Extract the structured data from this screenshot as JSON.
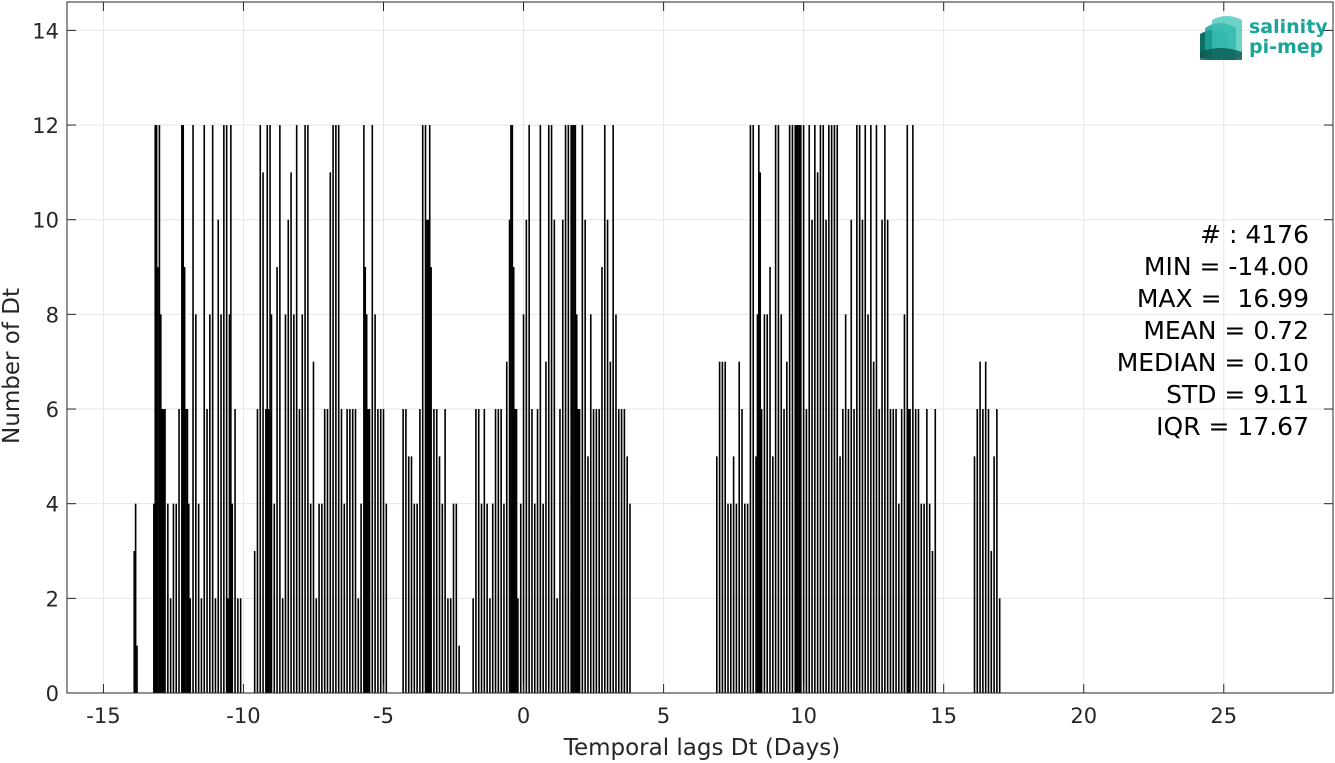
{
  "chart_data": {
    "type": "bar",
    "xlabel": "Temporal lags Dt (Days)",
    "ylabel": "Number of Dt",
    "xlim": [
      -16.3,
      28.9
    ],
    "ylim": [
      0,
      14.6
    ],
    "xticks": [
      -15,
      -10,
      -5,
      0,
      5,
      10,
      15,
      20,
      25
    ],
    "yticks": [
      0,
      2,
      4,
      6,
      8,
      10,
      12,
      14
    ],
    "grid": true,
    "bar_color": "#000000",
    "bar_width_days": 0.04,
    "x": [
      -13.9,
      -13.85,
      -13.8,
      -13.2,
      -13.15,
      -13.1,
      -13.05,
      -13.0,
      -12.95,
      -12.9,
      -12.85,
      -12.8,
      -12.7,
      -12.6,
      -12.5,
      -12.4,
      -12.3,
      -12.2,
      -12.15,
      -12.1,
      -12.05,
      -12.0,
      -11.95,
      -11.9,
      -11.8,
      -11.7,
      -11.6,
      -11.5,
      -11.4,
      -11.3,
      -11.2,
      -11.1,
      -11.0,
      -10.9,
      -10.8,
      -10.7,
      -10.6,
      -10.55,
      -10.5,
      -10.45,
      -10.4,
      -10.3,
      -10.2,
      -10.1,
      -9.6,
      -9.5,
      -9.4,
      -9.3,
      -9.2,
      -9.15,
      -9.1,
      -9.05,
      -9.0,
      -8.9,
      -8.8,
      -8.7,
      -8.6,
      -8.5,
      -8.4,
      -8.3,
      -8.2,
      -8.1,
      -8.0,
      -7.9,
      -7.8,
      -7.7,
      -7.6,
      -7.5,
      -7.4,
      -7.3,
      -7.2,
      -7.1,
      -7.0,
      -6.9,
      -6.8,
      -6.7,
      -6.6,
      -6.5,
      -6.4,
      -6.3,
      -6.2,
      -6.1,
      -6.0,
      -5.9,
      -5.8,
      -5.7,
      -5.65,
      -5.6,
      -5.55,
      -5.5,
      -5.4,
      -5.3,
      -5.2,
      -5.1,
      -5.0,
      -4.9,
      -4.3,
      -4.2,
      -4.1,
      -4.0,
      -3.9,
      -3.8,
      -3.7,
      -3.6,
      -3.5,
      -3.45,
      -3.4,
      -3.35,
      -3.3,
      -3.2,
      -3.1,
      -3.0,
      -2.9,
      -2.8,
      -2.7,
      -2.6,
      -2.5,
      -2.4,
      -2.3,
      -1.8,
      -1.7,
      -1.6,
      -1.5,
      -1.4,
      -1.3,
      -1.2,
      -1.1,
      -1.0,
      -0.9,
      -0.8,
      -0.7,
      -0.6,
      -0.5,
      -0.45,
      -0.4,
      -0.35,
      -0.3,
      -0.25,
      -0.2,
      -0.1,
      0.0,
      0.1,
      0.2,
      0.3,
      0.4,
      0.5,
      0.6,
      0.7,
      0.8,
      0.9,
      1.0,
      1.1,
      1.2,
      1.3,
      1.4,
      1.5,
      1.6,
      1.7,
      1.75,
      1.8,
      1.85,
      1.9,
      1.95,
      2.0,
      2.1,
      2.2,
      2.3,
      2.4,
      2.5,
      2.6,
      2.7,
      2.8,
      2.9,
      3.0,
      3.1,
      3.2,
      3.3,
      3.4,
      3.5,
      3.6,
      3.7,
      3.8,
      6.9,
      7.0,
      7.1,
      7.2,
      7.3,
      7.4,
      7.5,
      7.6,
      7.7,
      7.8,
      7.9,
      8.0,
      8.1,
      8.2,
      8.3,
      8.35,
      8.4,
      8.45,
      8.5,
      8.6,
      8.7,
      8.8,
      8.9,
      9.0,
      9.1,
      9.2,
      9.3,
      9.4,
      9.5,
      9.6,
      9.7,
      9.75,
      9.8,
      9.85,
      9.9,
      10.0,
      10.1,
      10.2,
      10.3,
      10.4,
      10.5,
      10.6,
      10.7,
      10.8,
      10.9,
      11.0,
      11.1,
      11.2,
      11.3,
      11.4,
      11.5,
      11.6,
      11.7,
      11.8,
      11.9,
      12.0,
      12.1,
      12.2,
      12.3,
      12.4,
      12.5,
      12.6,
      12.7,
      12.8,
      12.9,
      13.0,
      13.1,
      13.2,
      13.3,
      13.4,
      13.5,
      13.6,
      13.7,
      13.75,
      13.8,
      13.9,
      14.0,
      14.1,
      14.2,
      14.3,
      14.4,
      14.5,
      14.6,
      14.7,
      16.1,
      16.2,
      16.3,
      16.4,
      16.5,
      16.6,
      16.7,
      16.8,
      16.9,
      17.0
    ],
    "y": [
      3,
      4,
      1,
      4,
      12,
      12,
      9,
      12,
      8,
      6,
      6,
      6,
      4,
      2,
      4,
      4,
      6,
      12,
      12,
      9,
      6,
      6,
      4,
      2,
      12,
      8,
      4,
      2,
      12,
      6,
      8,
      12,
      2,
      10,
      8,
      12,
      12,
      2,
      8,
      12,
      4,
      6,
      2,
      2,
      3,
      6,
      12,
      11,
      6,
      12,
      6,
      12,
      8,
      4,
      9,
      12,
      2,
      8,
      10,
      11,
      8,
      12,
      6,
      8,
      12,
      12,
      4,
      7,
      2,
      4,
      4,
      6,
      6,
      11,
      12,
      12,
      12,
      6,
      4,
      6,
      6,
      6,
      6,
      2,
      4,
      12,
      9,
      8,
      6,
      6,
      12,
      8,
      6,
      6,
      6,
      4,
      6,
      6,
      5,
      5,
      4,
      4,
      6,
      12,
      12,
      10,
      10,
      12,
      9,
      6,
      6,
      5,
      4,
      6,
      2,
      2,
      4,
      4,
      1,
      2,
      6,
      6,
      4,
      6,
      4,
      2,
      4,
      6,
      6,
      6,
      4,
      7,
      10,
      12,
      12,
      9,
      6,
      6,
      2,
      4,
      8,
      10,
      12,
      6,
      4,
      6,
      12,
      4,
      7,
      12,
      12,
      10,
      2,
      6,
      10,
      12,
      12,
      12,
      12,
      12,
      12,
      8,
      6,
      6,
      12,
      10,
      5,
      8,
      6,
      6,
      6,
      9,
      12,
      10,
      7,
      12,
      8,
      6,
      6,
      6,
      5,
      4,
      5,
      7,
      7,
      7,
      4,
      4,
      5,
      4,
      7,
      6,
      4,
      4,
      12,
      12,
      5,
      8,
      12,
      11,
      6,
      8,
      8,
      9,
      5,
      12,
      12,
      8,
      6,
      7,
      12,
      12,
      12,
      12,
      12,
      12,
      12,
      12,
      6,
      12,
      10,
      12,
      11,
      12,
      12,
      10,
      12,
      12,
      12,
      12,
      5,
      6,
      8,
      6,
      10,
      6,
      12,
      12,
      10,
      12,
      8,
      12,
      7,
      12,
      6,
      10,
      12,
      10,
      6,
      6,
      6,
      4,
      6,
      8,
      12,
      6,
      6,
      12,
      6,
      6,
      4,
      4,
      6,
      4,
      3,
      6,
      5,
      6,
      7,
      6,
      7,
      6,
      3,
      5,
      6,
      2
    ]
  },
  "stats": {
    "count_text": "# : 4176",
    "min_text": "MIN = -14.00",
    "max_text": "MAX =  16.99",
    "mean_text": "MEAN = 0.72",
    "median_text": "MEDIAN = 0.10",
    "std_text": "STD = 9.11",
    "iqr_text": "IQR = 17.67"
  },
  "logo": {
    "line1": "salinity",
    "line2": "pi-mep",
    "color": "#1aa59a"
  },
  "colors": {
    "grid": "#e6e6e6",
    "axis": "#262626",
    "bars": "#000000"
  }
}
